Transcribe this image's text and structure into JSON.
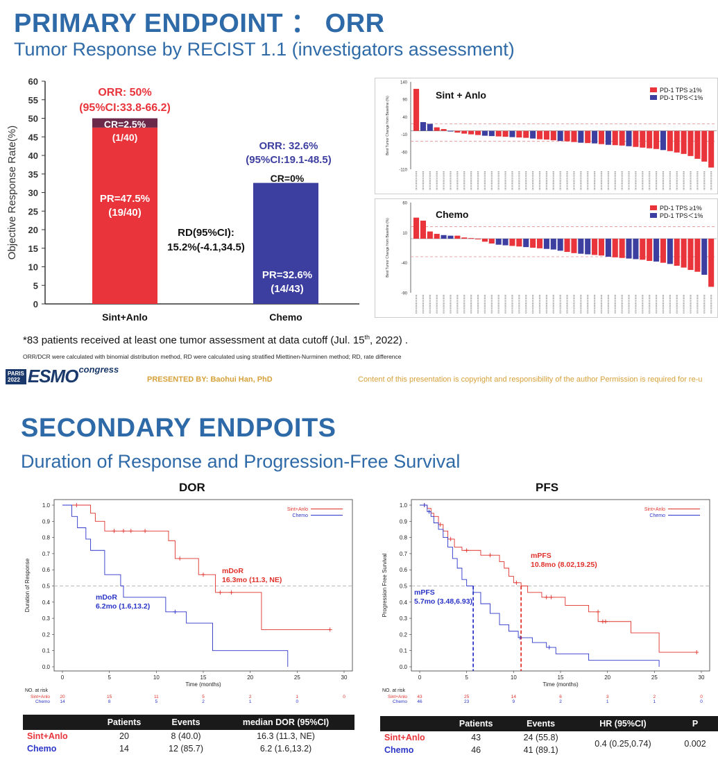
{
  "slide1": {
    "title": "PRIMARY ENDPOINT ： ORR",
    "subtitle": "Tumor Response by RECIST 1.1 (investigators assessment)",
    "footnote_main_pre": "*83 patients received at least one tumor assessment at data cutoff (Jul. 15",
    "footnote_main_sup": "th",
    "footnote_main_post": ", 2022) .",
    "footnote_methods": "ORR/DCR were calculated with binomial distribution method, RD were calculated using stratified Miettinen-Nurminen method; RD, rate difference",
    "esmo_box": [
      "PARIS",
      "2022"
    ],
    "esmo_word": "ESMO",
    "esmo_congress": "congress",
    "presented_by": "PRESENTED BY: Baohui Han, PhD",
    "copyright": "Content of this presentation is copyright and responsibility of the author Permission is required for re-u"
  },
  "slide2": {
    "title": "SECONDARY ENDPOITS",
    "subtitle": "Duration of Response and Progression-Free Survival",
    "dor_title": "DOR",
    "pfs_title": "PFS",
    "dor_table": {
      "headers": [
        "",
        "Patients",
        "Events",
        "median DOR (95%CI)"
      ],
      "rows": [
        {
          "arm": "Sint+Anlo",
          "patients": "20",
          "events": "8 (40.0)",
          "median": "16.3 (11.3, NE)"
        },
        {
          "arm": "Chemo",
          "patients": "14",
          "events": "12 (85.7)",
          "median": "6.2 (1.6,13.2)"
        }
      ]
    },
    "pfs_table": {
      "headers": [
        "",
        "Patients",
        "Events",
        "HR (95%CI)",
        "P"
      ],
      "rows": [
        {
          "arm": "Sint+Anlo",
          "patients": "43",
          "events": "24 (55.8)"
        },
        {
          "arm": "Chemo",
          "patients": "46",
          "events": "41 (89.1)"
        }
      ],
      "hr": "0.4 (0.25,0.74)",
      "p": "0.002"
    }
  },
  "colors": {
    "title_blue": "#2f6aa8",
    "sint_red": "#e8343a",
    "chemo_blue": "#3d3fa0",
    "cr_dark": "#6b2a4a",
    "km_red": "#e0302a",
    "km_blue": "#2a35c8",
    "gold": "#d6a13a"
  },
  "chart_data": [
    {
      "type": "bar",
      "ylabel": "Objective Response Rate(%)",
      "ylim": [
        0,
        60
      ],
      "yticks": [
        0,
        5,
        10,
        15,
        20,
        25,
        30,
        35,
        40,
        45,
        50,
        55,
        60
      ],
      "categories": [
        "Sint+Anlo",
        "Chemo"
      ],
      "series": [
        {
          "name": "PR",
          "values": [
            47.5,
            32.6
          ]
        },
        {
          "name": "CR",
          "values": [
            2.5,
            0
          ]
        }
      ],
      "annotations": {
        "sint_orr_line1": "ORR: 50%",
        "sint_orr_line2": "(95%CI:33.8-66.2)",
        "sint_cr_line1": "CR=2.5%",
        "sint_cr_line2": "(1/40)",
        "sint_pr_line1": "PR=47.5%",
        "sint_pr_line2": "(19/40)",
        "chemo_orr_line1": "ORR: 32.6%",
        "chemo_orr_line2": "(95%CI:19.1-48.5)",
        "chemo_cr": "CR=0%",
        "chemo_pr_line1": "PR=32.6%",
        "chemo_pr_line2": "(14/43)",
        "rd_line1": "RD(95%CI):",
        "rd_line2": "15.2%(-4.1,34.5)"
      }
    },
    {
      "type": "bar",
      "title": "Sint + Anlo",
      "ylabel": "Best Tumor Change from Baseline (%)",
      "ylim": [
        -110,
        140
      ],
      "yticks": [
        140,
        90,
        40,
        -10,
        -60,
        -110
      ],
      "reference_lines": [
        20,
        -30
      ],
      "legend": [
        "PD-1 TPS ≥1%",
        "PD-1 TPS＜1%"
      ],
      "legend_position": "top-right",
      "values": [
        120,
        25,
        20,
        10,
        5,
        0,
        -5,
        -8,
        -10,
        -12,
        -14,
        -15,
        -16,
        -17,
        -18,
        -19,
        -20,
        -22,
        -24,
        -25,
        -27,
        -29,
        -30,
        -32,
        -34,
        -35,
        -36,
        -38,
        -40,
        -41,
        -42,
        -44,
        -46,
        -48,
        -50,
        -52,
        -55,
        -58,
        -62,
        -66,
        -72,
        -80,
        -88,
        -105
      ],
      "groups": [
        0,
        1,
        1,
        0,
        0,
        1,
        0,
        0,
        0,
        0,
        1,
        1,
        0,
        0,
        1,
        0,
        0,
        1,
        0,
        0,
        0,
        1,
        0,
        0,
        1,
        0,
        1,
        0,
        1,
        0,
        0,
        1,
        0,
        0,
        0,
        0,
        1,
        0,
        0,
        0,
        0,
        0,
        0,
        0
      ]
    },
    {
      "type": "bar",
      "title": "Chemo",
      "ylabel": "Best Tumor Change from Baseline (%)",
      "ylim": [
        -90,
        60
      ],
      "yticks": [
        60,
        10,
        -40,
        -90
      ],
      "reference_lines": [
        20,
        -30
      ],
      "legend": [
        "PD-1 TPS ≥1%",
        "PD-1 TPS＜1%"
      ],
      "legend_position": "top-right",
      "values": [
        35,
        30,
        12,
        8,
        6,
        5,
        5,
        2,
        1,
        0,
        -5,
        -8,
        -10,
        -11,
        -12,
        -13,
        -14,
        -15,
        -16,
        -17,
        -18,
        -20,
        -22,
        -24,
        -25,
        -26,
        -27,
        -28,
        -30,
        -31,
        -32,
        -33,
        -34,
        -35,
        -37,
        -38,
        -40,
        -42,
        -45,
        -48,
        -52,
        -55,
        -60,
        -80
      ],
      "groups": [
        0,
        0,
        0,
        0,
        1,
        1,
        0,
        0,
        0,
        0,
        0,
        0,
        1,
        1,
        0,
        0,
        1,
        0,
        0,
        1,
        1,
        1,
        0,
        0,
        1,
        1,
        0,
        0,
        1,
        0,
        0,
        1,
        1,
        0,
        0,
        1,
        0,
        1,
        0,
        0,
        0,
        0,
        1,
        0
      ]
    },
    {
      "type": "line",
      "title": "DOR",
      "xlabel": "Time (months)",
      "ylabel": "Duration of Response",
      "xlim": [
        0,
        30
      ],
      "ylim": [
        0,
        1
      ],
      "xticks": [
        0,
        5,
        10,
        15,
        20,
        25,
        30
      ],
      "yticks": [
        0,
        0.1,
        0.2,
        0.3,
        0.4,
        0.5,
        0.6,
        0.7,
        0.8,
        0.9,
        1.0
      ],
      "legend_position": "top-right",
      "series": [
        {
          "name": "Sint+Anlo",
          "color": "#e0302a",
          "steps": [
            [
              0,
              1.0
            ],
            [
              3.0,
              0.95
            ],
            [
              3.5,
              0.9
            ],
            [
              4.5,
              0.84
            ],
            [
              11.3,
              0.78
            ],
            [
              12.0,
              0.67
            ],
            [
              14.5,
              0.57
            ],
            [
              16.3,
              0.46
            ],
            [
              21.2,
              0.23
            ],
            [
              28.5,
              0.23
            ]
          ],
          "censors": [
            [
              1.5,
              1.0
            ],
            [
              5.5,
              0.84
            ],
            [
              6.5,
              0.84
            ],
            [
              7.3,
              0.84
            ],
            [
              8.8,
              0.84
            ],
            [
              12.5,
              0.67
            ],
            [
              15.0,
              0.57
            ],
            [
              16.8,
              0.46
            ],
            [
              18.0,
              0.46
            ],
            [
              28.5,
              0.23
            ]
          ]
        },
        {
          "name": "Chemo",
          "color": "#2a35c8",
          "steps": [
            [
              0,
              1.0
            ],
            [
              1.0,
              0.93
            ],
            [
              1.6,
              0.86
            ],
            [
              2.5,
              0.79
            ],
            [
              3.0,
              0.72
            ],
            [
              4.5,
              0.57
            ],
            [
              6.2,
              0.5
            ],
            [
              6.5,
              0.43
            ],
            [
              11.0,
              0.34
            ],
            [
              13.2,
              0.27
            ],
            [
              16.0,
              0.1
            ],
            [
              24.0,
              0.0
            ]
          ],
          "censors": [
            [
              12.0,
              0.34
            ]
          ]
        }
      ],
      "median_line": 0.5,
      "annotations": {
        "sint_line1": "mDoR",
        "sint_line2": "16.3mo (11.3, NE)",
        "chemo_line1": "mDoR",
        "chemo_line2": "6.2mo (1.6,13.2)"
      },
      "at_risk": {
        "label": "NO. at risk",
        "rows": [
          {
            "name": "Sint+Anlo",
            "values": [
              "20",
              "15",
              "11",
              "5",
              "2",
              "1",
              "0"
            ]
          },
          {
            "name": "Chemo",
            "values": [
              "14",
              "8",
              "5",
              "2",
              "1",
              "0",
              ""
            ]
          }
        ]
      }
    },
    {
      "type": "line",
      "title": "PFS",
      "xlabel": "Time (months)",
      "ylabel": "Progression Free Survival",
      "xlim": [
        0,
        30
      ],
      "ylim": [
        0,
        1
      ],
      "xticks": [
        0,
        5,
        10,
        15,
        20,
        25,
        30
      ],
      "yticks": [
        0,
        0.1,
        0.2,
        0.3,
        0.4,
        0.5,
        0.6,
        0.7,
        0.8,
        0.9,
        1.0
      ],
      "legend_position": "top-right",
      "series": [
        {
          "name": "Sint+Anlo",
          "color": "#e0302a",
          "steps": [
            [
              0,
              1.0
            ],
            [
              0.8,
              0.98
            ],
            [
              1.2,
              0.95
            ],
            [
              1.5,
              0.93
            ],
            [
              2.0,
              0.88
            ],
            [
              2.5,
              0.84
            ],
            [
              3.0,
              0.79
            ],
            [
              3.7,
              0.74
            ],
            [
              4.5,
              0.72
            ],
            [
              6.5,
              0.69
            ],
            [
              8.5,
              0.65
            ],
            [
              9.0,
              0.61
            ],
            [
              9.5,
              0.56
            ],
            [
              10.0,
              0.52
            ],
            [
              10.8,
              0.5
            ],
            [
              11.5,
              0.46
            ],
            [
              13.0,
              0.43
            ],
            [
              15.5,
              0.38
            ],
            [
              18.0,
              0.34
            ],
            [
              19.0,
              0.28
            ],
            [
              22.5,
              0.21
            ],
            [
              25.5,
              0.09
            ],
            [
              29.5,
              0.09
            ]
          ],
          "censors": [
            [
              0.5,
              1.0
            ],
            [
              2.2,
              0.88
            ],
            [
              3.3,
              0.79
            ],
            [
              5.0,
              0.72
            ],
            [
              7.5,
              0.69
            ],
            [
              10.3,
              0.52
            ],
            [
              13.5,
              0.43
            ],
            [
              14.0,
              0.43
            ],
            [
              19.0,
              0.34
            ],
            [
              19.5,
              0.28
            ],
            [
              19.8,
              0.28
            ],
            [
              29.5,
              0.09
            ]
          ]
        },
        {
          "name": "Chemo",
          "color": "#2a35c8",
          "steps": [
            [
              0,
              1.0
            ],
            [
              0.8,
              0.96
            ],
            [
              1.2,
              0.93
            ],
            [
              1.5,
              0.89
            ],
            [
              2.0,
              0.85
            ],
            [
              2.5,
              0.8
            ],
            [
              3.0,
              0.74
            ],
            [
              3.5,
              0.67
            ],
            [
              4.0,
              0.61
            ],
            [
              4.5,
              0.54
            ],
            [
              5.0,
              0.5
            ],
            [
              5.7,
              0.46
            ],
            [
              6.5,
              0.39
            ],
            [
              7.5,
              0.33
            ],
            [
              8.5,
              0.26
            ],
            [
              9.5,
              0.22
            ],
            [
              10.5,
              0.18
            ],
            [
              12.0,
              0.15
            ],
            [
              13.5,
              0.12
            ],
            [
              14.5,
              0.08
            ],
            [
              18.0,
              0.04
            ],
            [
              25.5,
              0.0
            ]
          ],
          "censors": [
            [
              0.5,
              1.0
            ],
            [
              1.0,
              0.96
            ],
            [
              10.7,
              0.18
            ],
            [
              13.8,
              0.12
            ]
          ]
        }
      ],
      "median_line": 0.5,
      "median_verticals": [
        {
          "x": 5.7,
          "color": "#2a35c8"
        },
        {
          "x": 10.8,
          "color": "#e0302a"
        }
      ],
      "annotations": {
        "sint_line1": "mPFS",
        "sint_line2": "10.8mo (8.02,19.25)",
        "chemo_line1": "mPFS",
        "chemo_line2": "5.7mo (3.48,6.93)"
      },
      "at_risk": {
        "label": "NO. at risk",
        "rows": [
          {
            "name": "Sint+Anlo",
            "values": [
              "43",
              "25",
              "14",
              "6",
              "3",
              "2",
              "0"
            ]
          },
          {
            "name": "Chemo",
            "values": [
              "46",
              "23",
              "9",
              "2",
              "1",
              "1",
              "0"
            ]
          }
        ]
      }
    }
  ]
}
